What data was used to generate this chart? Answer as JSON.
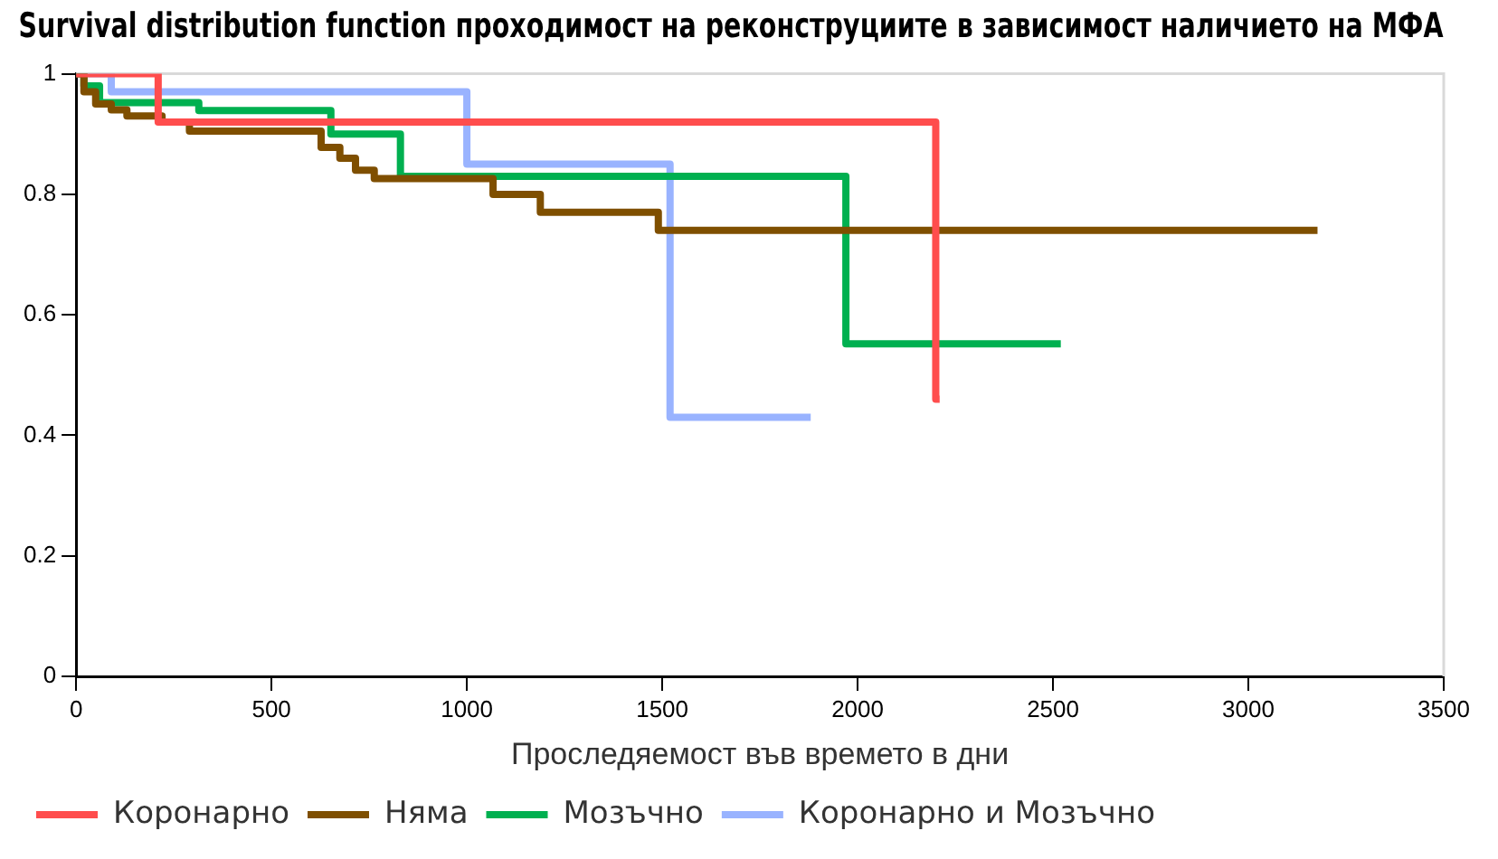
{
  "chart_data": {
    "type": "step",
    "title": "Survival distribution function проходимост на реконструциите в зависимост наличието на МФА",
    "xlabel": "Проследяемост във времето в дни",
    "xlim": [
      0,
      3500
    ],
    "xticks": [
      0,
      500,
      1000,
      1500,
      2000,
      2500,
      3000,
      3500
    ],
    "ylim": [
      0,
      1
    ],
    "yticks": [
      0,
      0.2,
      0.4,
      0.6,
      0.8,
      1
    ],
    "grid": false,
    "legend": "bottom",
    "marker": "none",
    "line_style": "solid",
    "series": [
      {
        "name": "Коронарно",
        "color": "#ff4d4d",
        "x": [
          0,
          210,
          2200,
          2210
        ],
        "values": [
          1,
          0.92,
          0.46,
          0.46
        ]
      },
      {
        "name": "Няма",
        "color": "#7f4f00",
        "x": [
          0,
          20,
          50,
          90,
          130,
          220,
          290,
          627,
          675,
          715,
          763,
          1067,
          1188,
          1490,
          3177
        ],
        "values": [
          1,
          0.97,
          0.95,
          0.94,
          0.93,
          0.92,
          0.905,
          0.878,
          0.86,
          0.84,
          0.826,
          0.8,
          0.77,
          0.74,
          0.74
        ]
      },
      {
        "name": "Мозъчно",
        "color": "#00b050",
        "x": [
          0,
          20,
          60,
          314,
          652,
          830,
          1970,
          2520
        ],
        "values": [
          1,
          0.98,
          0.952,
          0.939,
          0.9,
          0.83,
          0.552,
          0.552
        ]
      },
      {
        "name": "Коронарно и Мозъчно",
        "color": "#99b3ff",
        "x": [
          0,
          90,
          1000,
          1520,
          1880
        ],
        "values": [
          1,
          0.97,
          0.85,
          0.43,
          0.43
        ]
      }
    ]
  }
}
